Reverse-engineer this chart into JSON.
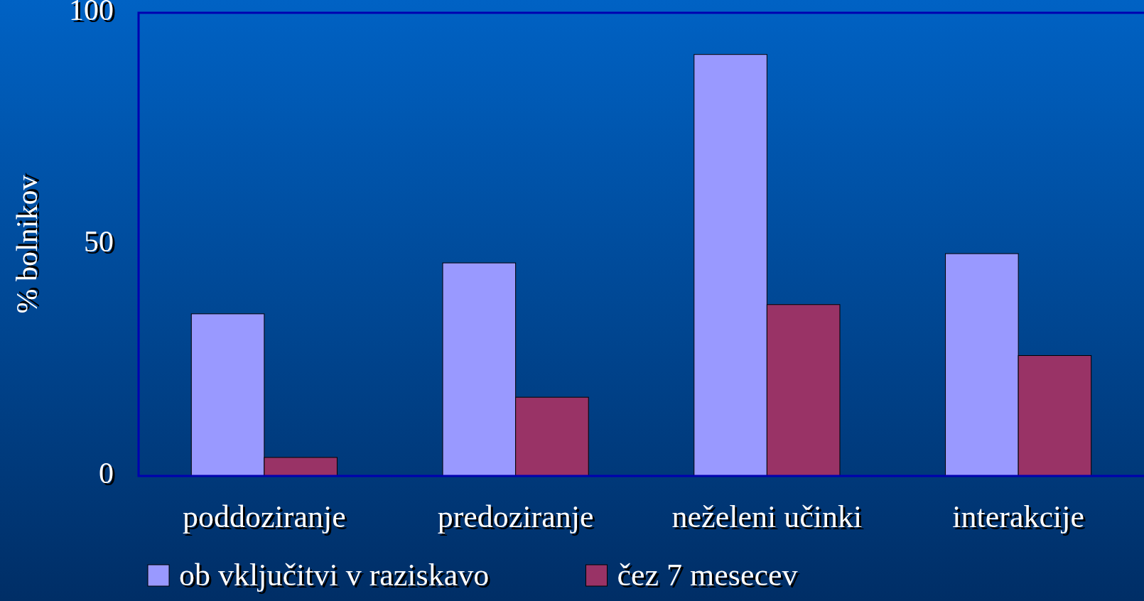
{
  "chart_data": {
    "type": "bar",
    "ylabel": "% bolnikov",
    "categories": [
      "poddoziranje",
      "predoziranje",
      "neželeni učinki",
      "interakcije"
    ],
    "series": [
      {
        "name": "ob vključitvi v raziskavo",
        "color": "#9999ff",
        "values": [
          35,
          46,
          91,
          48
        ]
      },
      {
        "name": "čez 7 mesecev",
        "color": "#993366",
        "values": [
          4,
          17,
          37,
          26
        ]
      }
    ],
    "ylim": [
      0,
      100
    ],
    "yticks": [
      0,
      50,
      100
    ],
    "grid": false,
    "legend": "bottom"
  }
}
